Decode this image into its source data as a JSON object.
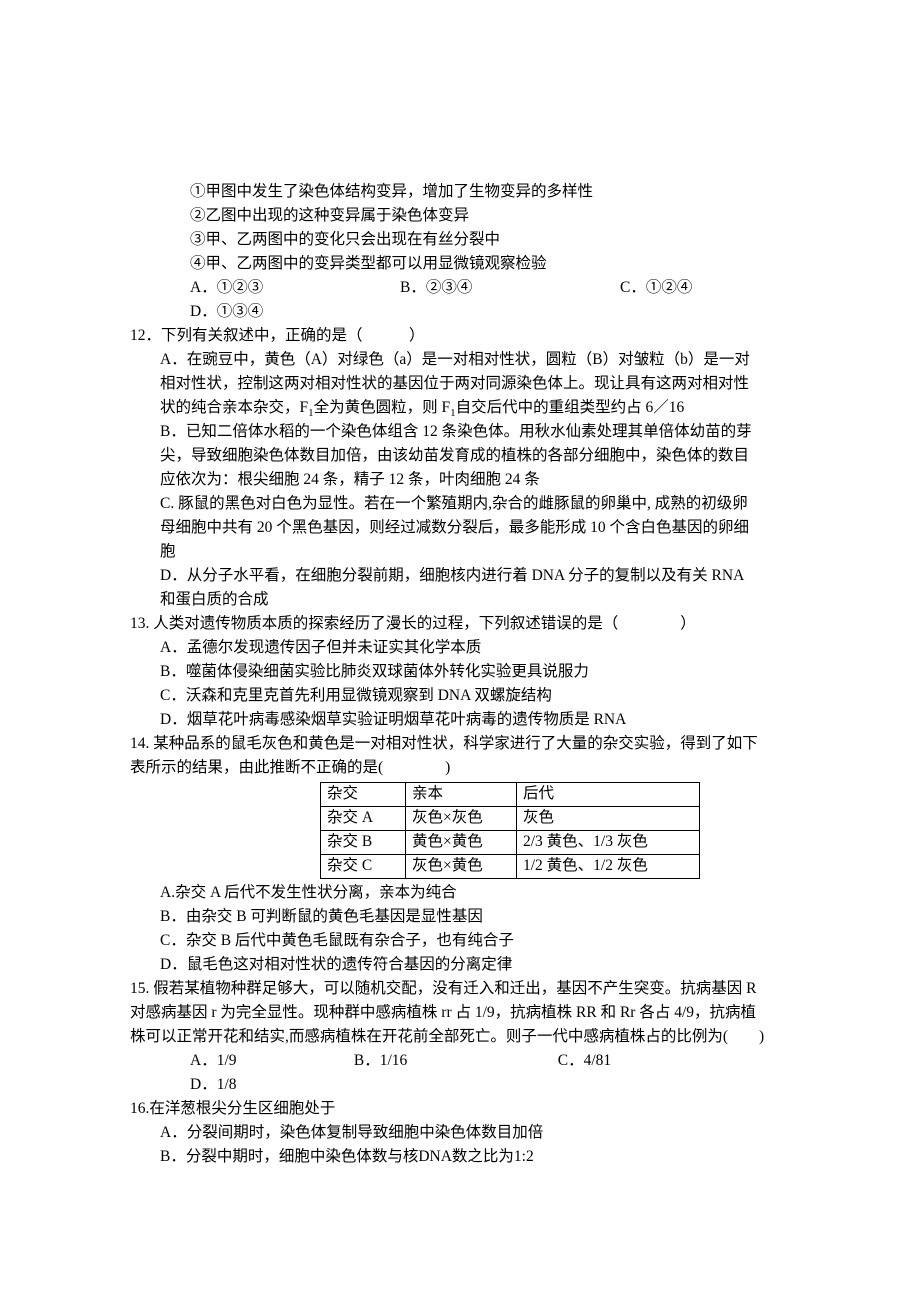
{
  "q11": {
    "s1": "①甲图中发生了染色体结构变异，增加了生物变异的多样性",
    "s2": "②乙图中出现的这种变异属于染色体变异",
    "s3": "③甲、乙两图中的变化只会出现在有丝分裂中",
    "s4": "④甲、乙两图中的变异类型都可以用显微镜观察检验",
    "A": "A．①②③",
    "B": "B．②③④",
    "C": "C．①②④",
    "D": "D．①③④"
  },
  "q12": {
    "stem": "12．下列有关叙述中，正确的是（　　　）",
    "A1": "A．在豌豆中，黄色（A）对绿色（a）是一对相对性状，圆粒（B）对皱粒（b）是一对",
    "A2": "相对性状，控制这两对相对性状的基因位于两对同源染色体上。现让具有这两对相对性",
    "A3a": "状的纯合亲本杂交，F",
    "A3b": "全为黄色圆粒，则 F",
    "A3c": "自交后代中的重组类型约占 6／16",
    "B1": "B．已知二倍体水稻的一个染色体组含 12 条染色体。用秋水仙素处理其单倍体幼苗的芽",
    "B2": "尖，导致细胞染色体数目加倍，由该幼苗发育成的植株的各部分细胞中，染色体的数目",
    "B3": "应依次为：根尖细胞 24 条，精子 12 条，叶肉细胞 24 条",
    "C1": "C.  豚鼠的黑色对白色为显性。若在一个繁殖期内,杂合的雌豚鼠的卵巢中,  成熟的初级卵",
    "C2": "母细胞中共有 20 个黑色基因，则经过减数分裂后，最多能形成 10 个含白色基因的卵细",
    "C3": "胞",
    "D1": "D．从分子水平看，在细胞分裂前期，细胞核内进行着 DNA 分子的复制以及有关 RNA",
    "D2": "和蛋白质的合成"
  },
  "q13": {
    "stem": "13.  人类对遗传物质本质的探索经历了漫长的过程，下列叙述错误的是（　　　　）",
    "A": "A．孟德尔发现遗传因子但并未证实其化学本质",
    "B": "B．噬菌体侵染细菌实验比肺炎双球菌体外转化实验更具说服力",
    "C": "C．沃森和克里克首先利用显微镜观察到 DNA 双螺旋结构",
    "D": "D．烟草花叶病毒感染烟草实验证明烟草花叶病毒的遗传物质是 RNA"
  },
  "q14": {
    "stem1": "14.  某种品系的鼠毛灰色和黄色是一对相对性状，科学家进行了大量的杂交实验，得到了如下",
    "stem2": "表所示的结果，由此推断不正确的是(　　　　)",
    "table": {
      "header": [
        "杂交",
        "亲本",
        "后代"
      ],
      "rows": [
        [
          "杂交 A",
          "灰色×灰色",
          "灰色"
        ],
        [
          "杂交 B",
          "黄色×黄色",
          "2/3 黄色、1/3 灰色"
        ],
        [
          "杂交 C",
          "灰色×黄色",
          "1/2 黄色、1/2 灰色"
        ]
      ]
    },
    "A": "A.杂交 A 后代不发生性状分离，亲本为纯合",
    "B": "B．由杂交 B 可判断鼠的黄色毛基因是显性基因",
    "C": "C．杂交 B 后代中黄色毛鼠既有杂合子，也有纯合子",
    "D": "D．鼠毛色这对相对性状的遗传符合基因的分离定律"
  },
  "q15": {
    "l1": "15.  假若某植物种群足够大，可以随机交配，没有迁入和迁出，基因不产生突变。抗病基因 R",
    "l2": "对感病基因 r 为完全显性。现种群中感病植株 rr 占 1/9，抗病植株 RR 和 Rr 各占 4/9，抗病植",
    "l3": "株可以正常开花和结实,而感病植株在开花前全部死亡。则子一代中感病植株占的比例为(　　)",
    "A": "A．1/9",
    "B": "B．1/16",
    "C": "C．4/81",
    "D": "D．1/8"
  },
  "q16": {
    "stem": "16.在洋葱根尖分生区细胞处于",
    "A": "A．分裂间期时，染色体复制导致细胞中染色体数目加倍",
    "B": "B．分裂中期时，细胞中染色体数与核DNA数之比为1:2"
  }
}
